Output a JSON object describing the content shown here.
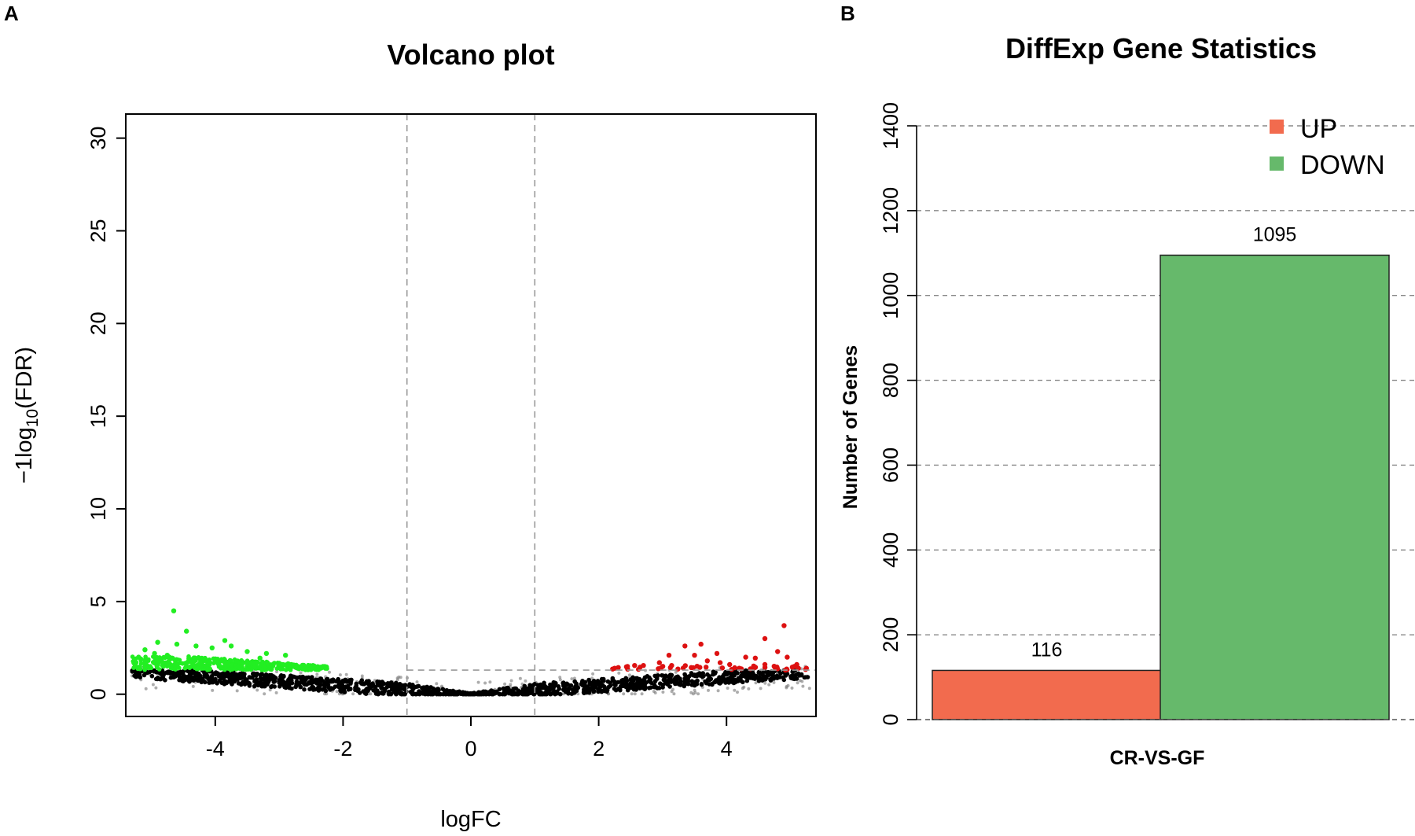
{
  "panels": {
    "a_label": "A",
    "b_label": "B"
  },
  "chart_data": [
    {
      "type": "scatter",
      "title": "Volcano plot",
      "xlabel": "logFC",
      "ylabel_prefix": "−1log",
      "ylabel_sub": "10",
      "ylabel_suffix": "(FDR)",
      "xlim": [
        -5.4,
        5.4
      ],
      "ylim": [
        -1.2,
        31.3
      ],
      "x_ticks": [
        -4,
        -2,
        0,
        2,
        4
      ],
      "y_ticks": [
        0,
        5,
        10,
        15,
        20,
        25,
        30
      ],
      "vlines": [
        -1,
        1
      ],
      "hline": 1.3,
      "colors": {
        "down": "#22ee22",
        "up": "#dd1111",
        "ns": "#000000",
        "ns_faint": "#777777",
        "guide": "#999999"
      },
      "down_points": [
        [
          -4.65,
          4.5
        ],
        [
          -4.45,
          3.4
        ],
        [
          -4.9,
          2.8
        ],
        [
          -4.6,
          2.7
        ],
        [
          -4.3,
          2.6
        ],
        [
          -4.05,
          2.5
        ],
        [
          -3.85,
          2.9
        ],
        [
          -3.75,
          2.6
        ],
        [
          -3.5,
          2.3
        ],
        [
          -3.2,
          2.2
        ],
        [
          -2.9,
          2.1
        ],
        [
          -3.3,
          1.95
        ],
        [
          -5.1,
          2.4
        ],
        [
          -5.2,
          2.0
        ],
        [
          -4.95,
          2.2
        ],
        [
          -4.75,
          2.1
        ]
      ],
      "up_points": [
        [
          4.9,
          3.7
        ],
        [
          4.6,
          3.0
        ],
        [
          4.8,
          2.3
        ],
        [
          4.95,
          2.0
        ],
        [
          5.1,
          1.6
        ],
        [
          5.25,
          1.4
        ],
        [
          4.6,
          1.6
        ],
        [
          4.45,
          1.95
        ],
        [
          4.3,
          2.0
        ],
        [
          4.2,
          1.4
        ],
        [
          3.6,
          2.7
        ],
        [
          3.35,
          2.6
        ],
        [
          3.5,
          2.1
        ],
        [
          3.7,
          1.8
        ],
        [
          3.9,
          1.7
        ],
        [
          3.1,
          2.1
        ],
        [
          2.95,
          1.7
        ],
        [
          2.7,
          1.55
        ],
        [
          2.45,
          1.5
        ],
        [
          2.25,
          1.4
        ],
        [
          3.85,
          2.2
        ],
        [
          4.05,
          1.6
        ]
      ]
    },
    {
      "type": "bar",
      "title": "DiffExp Gene Statistics",
      "xlabel": "CR-VS-GF",
      "ylabel": "Number of Genes",
      "categories": [
        "UP",
        "DOWN"
      ],
      "values": [
        116,
        1095
      ],
      "value_labels": [
        "116",
        "1095"
      ],
      "colors": [
        "#f26b4e",
        "#66b96b"
      ],
      "ylim": [
        0,
        1400
      ],
      "y_ticks": [
        0,
        200,
        400,
        600,
        800,
        1000,
        1200,
        1400
      ],
      "grid": true,
      "legend": {
        "position": "top-right",
        "entries": [
          "UP",
          "DOWN"
        ]
      }
    }
  ]
}
